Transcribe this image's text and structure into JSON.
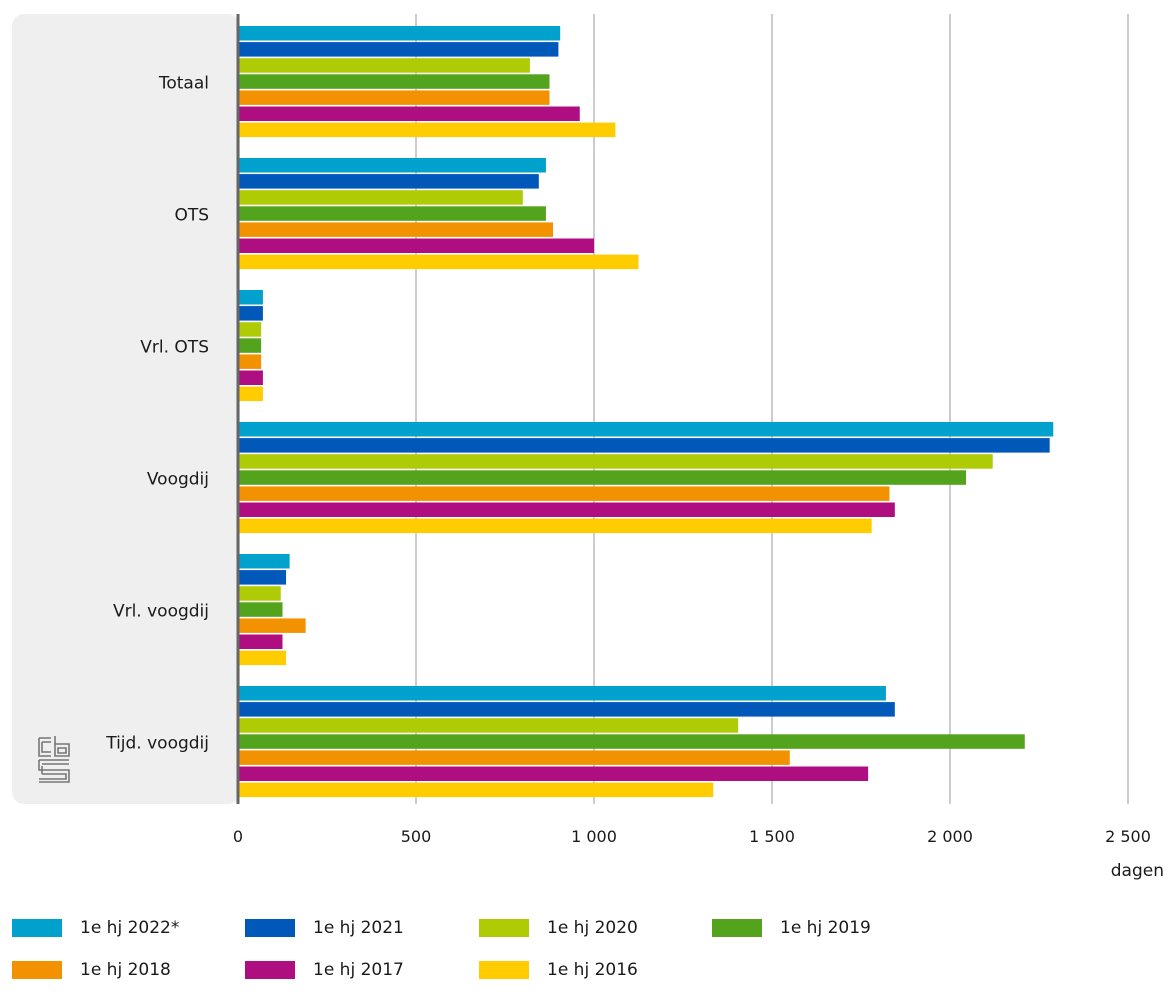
{
  "chart_data": {
    "type": "bar",
    "orientation": "horizontal",
    "categories": [
      "Totaal",
      "OTS",
      "Vrl. OTS",
      "Voogdij",
      "Vrl. voogdij",
      "Tijd. voogdij"
    ],
    "series": [
      {
        "name": "1e hj 2022*",
        "color": "#00a1cd",
        "values": [
          905,
          865,
          70,
          2290,
          145,
          1820
        ]
      },
      {
        "name": "1e hj 2021",
        "color": "#0058b8",
        "values": [
          900,
          845,
          70,
          2280,
          135,
          1845
        ]
      },
      {
        "name": "1e hj 2020",
        "color": "#afcb05",
        "values": [
          820,
          800,
          65,
          2120,
          120,
          1405
        ]
      },
      {
        "name": "1e hj 2019",
        "color": "#53a31d",
        "values": [
          875,
          865,
          65,
          2045,
          125,
          2210
        ]
      },
      {
        "name": "1e hj 2018",
        "color": "#f39200",
        "values": [
          875,
          885,
          65,
          1830,
          190,
          1550
        ]
      },
      {
        "name": "1e hj 2017",
        "color": "#af0e80",
        "values": [
          960,
          1000,
          70,
          1845,
          125,
          1770
        ]
      },
      {
        "name": "1e hj 2016",
        "color": "#ffcc00",
        "values": [
          1060,
          1125,
          70,
          1780,
          135,
          1335
        ]
      }
    ],
    "xlim": [
      0,
      2500
    ],
    "xticks": [
      0,
      500,
      1000,
      1500,
      2000,
      2500
    ],
    "xtick_labels": [
      "0",
      "500",
      "1 000",
      "1 500",
      "2 000",
      "2 500"
    ],
    "xlabel": "dagen",
    "grid": true,
    "legend_position": "bottom"
  }
}
